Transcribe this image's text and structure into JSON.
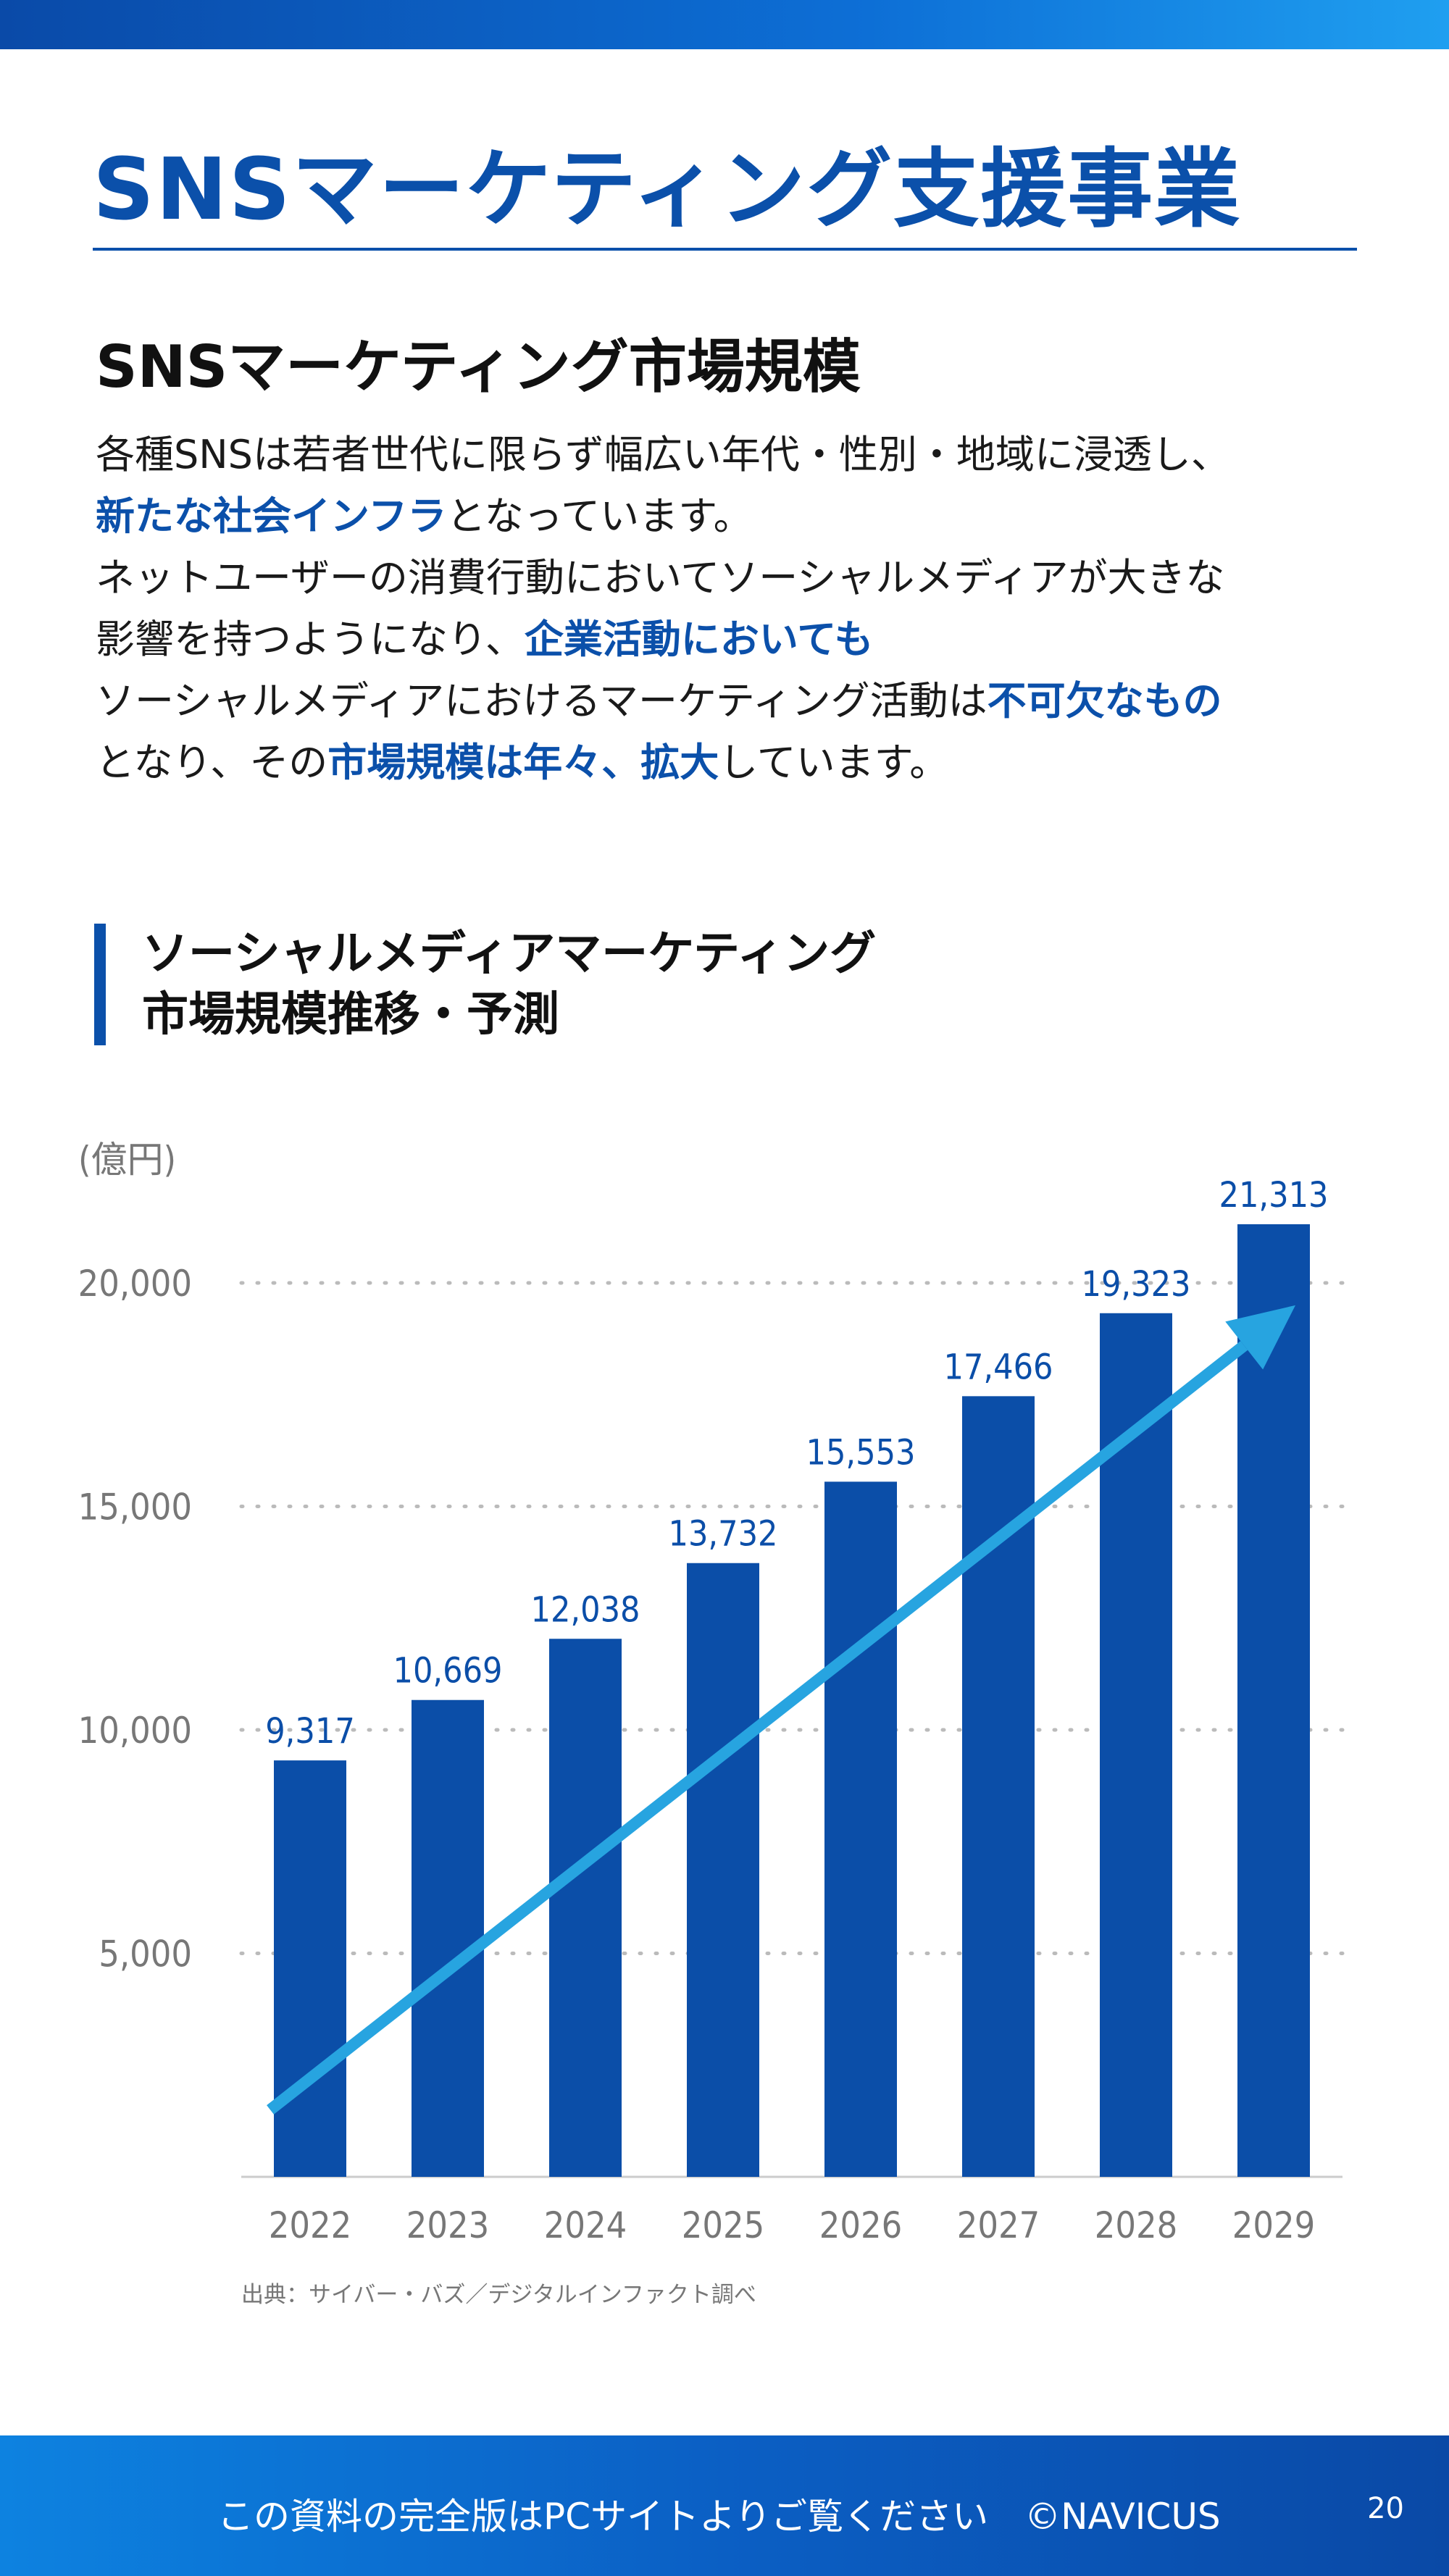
{
  "header": {
    "title": "SNSマーケティング支援事業"
  },
  "section": {
    "heading": "SNSマーケティング市場規模",
    "paragraph": [
      [
        {
          "t": "各種SNSは若者世代に限らず幅広い年代・性別・地域に浸透し、",
          "h": false
        }
      ],
      [
        {
          "t": "新たな社会インフラ",
          "h": true
        },
        {
          "t": "となっています。",
          "h": false
        }
      ],
      [
        {
          "t": "ネットユーザーの消費行動においてソーシャルメディアが大きな",
          "h": false
        }
      ],
      [
        {
          "t": "影響を持つようになり、",
          "h": false
        },
        {
          "t": "企業活動においても",
          "h": true
        }
      ],
      [
        {
          "t": "ソーシャルメディアにおけるマーケティング活動は",
          "h": false
        },
        {
          "t": "不可欠なもの",
          "h": true
        }
      ],
      [
        {
          "t": "となり、その",
          "h": false
        },
        {
          "t": "市場規模は年々、拡大",
          "h": true
        },
        {
          "t": "しています。",
          "h": false
        }
      ]
    ]
  },
  "chart_heading": {
    "line1": "ソーシャルメディアマーケティング",
    "line2": "市場規模推移・予測"
  },
  "chart_data": {
    "type": "bar",
    "title": "",
    "ylabel": "(億円)",
    "xlabel": "",
    "categories": [
      "2022",
      "2023",
      "2024",
      "2025",
      "2026",
      "2027",
      "2028",
      "2029"
    ],
    "values": [
      9317,
      10669,
      12038,
      13732,
      15553,
      17466,
      19323,
      21313
    ],
    "value_labels": [
      "9,317",
      "10,669",
      "12,038",
      "13,732",
      "15,553",
      "17,466",
      "19,323",
      "21,313"
    ],
    "yticks": [
      5000,
      10000,
      15000,
      20000
    ],
    "ytick_labels": [
      "5,000",
      "10,000",
      "15,000",
      "20,000"
    ],
    "ylim": [
      0,
      22000
    ],
    "grid": "horizontal dotted",
    "legend": "none",
    "trend_arrow": true,
    "colors": {
      "bar": "#0b4ea8",
      "value_label": "#0b4ea8",
      "arrow": "#27a4e0",
      "axis_text": "#777777",
      "grid": "#bbbbbb"
    }
  },
  "source": "出典：サイバー・バズ／デジタルインファクト調べ",
  "footer": {
    "text": "この資料の完全版はPCサイトよりご覧ください　©NAVICUS",
    "page_number": "20"
  }
}
